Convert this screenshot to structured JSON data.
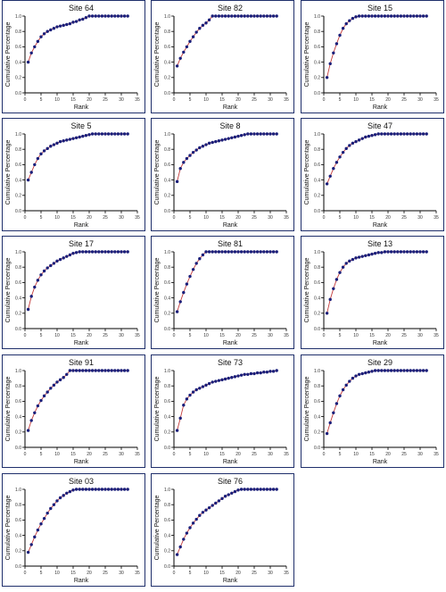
{
  "chart_data": [
    {
      "type": "line",
      "title": "Site 64",
      "xlabel": "Rank",
      "ylabel": "Cumulative Percentage",
      "xlim": [
        0,
        35
      ],
      "ylim": [
        0,
        1
      ],
      "x": [
        1,
        2,
        3,
        4,
        5,
        6,
        7,
        8,
        9,
        10,
        11,
        12,
        13,
        14,
        15,
        16,
        17,
        18,
        19,
        20,
        21,
        22,
        23,
        24,
        25,
        26,
        27,
        28,
        29,
        30,
        31,
        32
      ],
      "series": [
        {
          "values": [
            0.4,
            0.52,
            0.6,
            0.67,
            0.73,
            0.77,
            0.8,
            0.82,
            0.84,
            0.86,
            0.87,
            0.88,
            0.89,
            0.9,
            0.92,
            0.93,
            0.95,
            0.96,
            0.98,
            1,
            1,
            1,
            1,
            1,
            1,
            1,
            1,
            1,
            1,
            1,
            1,
            1
          ]
        }
      ]
    },
    {
      "type": "line",
      "title": "Site 82",
      "xlabel": "Rank",
      "ylabel": "Cumulative Percentage",
      "xlim": [
        0,
        35
      ],
      "ylim": [
        0,
        1
      ],
      "x": [
        1,
        2,
        3,
        4,
        5,
        6,
        7,
        8,
        9,
        10,
        11,
        12,
        13,
        14,
        15,
        16,
        17,
        18,
        19,
        20,
        21,
        22,
        23,
        24,
        25,
        26,
        27,
        28,
        29,
        30,
        31,
        32
      ],
      "series": [
        {
          "values": [
            0.35,
            0.45,
            0.53,
            0.6,
            0.67,
            0.73,
            0.79,
            0.84,
            0.88,
            0.91,
            0.95,
            1,
            1,
            1,
            1,
            1,
            1,
            1,
            1,
            1,
            1,
            1,
            1,
            1,
            1,
            1,
            1,
            1,
            1,
            1,
            1,
            1
          ]
        }
      ]
    },
    {
      "type": "line",
      "title": "Site 15",
      "xlabel": "Rank",
      "ylabel": "Cumulative Percentage",
      "xlim": [
        0,
        35
      ],
      "ylim": [
        0,
        1
      ],
      "x": [
        1,
        2,
        3,
        4,
        5,
        6,
        7,
        8,
        9,
        10,
        11,
        12,
        13,
        14,
        15,
        16,
        17,
        18,
        19,
        20,
        21,
        22,
        23,
        24,
        25,
        26,
        27,
        28,
        29,
        30,
        31,
        32
      ],
      "series": [
        {
          "values": [
            0.2,
            0.38,
            0.52,
            0.64,
            0.75,
            0.84,
            0.9,
            0.94,
            0.97,
            0.99,
            1,
            1,
            1,
            1,
            1,
            1,
            1,
            1,
            1,
            1,
            1,
            1,
            1,
            1,
            1,
            1,
            1,
            1,
            1,
            1,
            1,
            1
          ]
        }
      ]
    },
    {
      "type": "line",
      "title": "Site 5",
      "xlabel": "Rank",
      "ylabel": "Cumulative Percentage",
      "xlim": [
        0,
        35
      ],
      "ylim": [
        0,
        1
      ],
      "x": [
        1,
        2,
        3,
        4,
        5,
        6,
        7,
        8,
        9,
        10,
        11,
        12,
        13,
        14,
        15,
        16,
        17,
        18,
        19,
        20,
        21,
        22,
        23,
        24,
        25,
        26,
        27,
        28,
        29,
        30,
        31,
        32
      ],
      "series": [
        {
          "values": [
            0.4,
            0.5,
            0.6,
            0.68,
            0.74,
            0.78,
            0.81,
            0.84,
            0.86,
            0.88,
            0.9,
            0.91,
            0.92,
            0.93,
            0.94,
            0.95,
            0.96,
            0.97,
            0.98,
            0.99,
            1,
            1,
            1,
            1,
            1,
            1,
            1,
            1,
            1,
            1,
            1,
            1
          ]
        }
      ]
    },
    {
      "type": "line",
      "title": "Site 8",
      "xlabel": "Rank",
      "ylabel": "Cumulative Percentage",
      "xlim": [
        0,
        35
      ],
      "ylim": [
        0,
        1
      ],
      "x": [
        1,
        2,
        3,
        4,
        5,
        6,
        7,
        8,
        9,
        10,
        11,
        12,
        13,
        14,
        15,
        16,
        17,
        18,
        19,
        20,
        21,
        22,
        23,
        24,
        25,
        26,
        27,
        28,
        29,
        30,
        31,
        32
      ],
      "series": [
        {
          "values": [
            0.38,
            0.55,
            0.63,
            0.68,
            0.72,
            0.76,
            0.79,
            0.82,
            0.84,
            0.86,
            0.88,
            0.89,
            0.9,
            0.91,
            0.92,
            0.93,
            0.94,
            0.95,
            0.96,
            0.97,
            0.98,
            0.99,
            1,
            1,
            1,
            1,
            1,
            1,
            1,
            1,
            1,
            1
          ]
        }
      ]
    },
    {
      "type": "line",
      "title": "Site 47",
      "xlabel": "Rank",
      "ylabel": "Cumulative Percentage",
      "xlim": [
        0,
        35
      ],
      "ylim": [
        0,
        1
      ],
      "x": [
        1,
        2,
        3,
        4,
        5,
        6,
        7,
        8,
        9,
        10,
        11,
        12,
        13,
        14,
        15,
        16,
        17,
        18,
        19,
        20,
        21,
        22,
        23,
        24,
        25,
        26,
        27,
        28,
        29,
        30,
        31,
        32
      ],
      "series": [
        {
          "values": [
            0.35,
            0.45,
            0.55,
            0.63,
            0.7,
            0.76,
            0.81,
            0.85,
            0.88,
            0.9,
            0.92,
            0.94,
            0.96,
            0.97,
            0.98,
            0.99,
            1,
            1,
            1,
            1,
            1,
            1,
            1,
            1,
            1,
            1,
            1,
            1,
            1,
            1,
            1,
            1
          ]
        }
      ]
    },
    {
      "type": "line",
      "title": "Site 17",
      "xlabel": "Rank",
      "ylabel": "Cumulative Percentage",
      "xlim": [
        0,
        35
      ],
      "ylim": [
        0,
        1
      ],
      "x": [
        1,
        2,
        3,
        4,
        5,
        6,
        7,
        8,
        9,
        10,
        11,
        12,
        13,
        14,
        15,
        16,
        17,
        18,
        19,
        20,
        21,
        22,
        23,
        24,
        25,
        26,
        27,
        28,
        29,
        30,
        31,
        32
      ],
      "series": [
        {
          "values": [
            0.25,
            0.42,
            0.54,
            0.63,
            0.7,
            0.75,
            0.79,
            0.82,
            0.85,
            0.88,
            0.9,
            0.92,
            0.94,
            0.96,
            0.98,
            0.99,
            1,
            1,
            1,
            1,
            1,
            1,
            1,
            1,
            1,
            1,
            1,
            1,
            1,
            1,
            1,
            1
          ]
        }
      ]
    },
    {
      "type": "line",
      "title": "Site 81",
      "xlabel": "Rank",
      "ylabel": "Cumulative Percentage",
      "xlim": [
        0,
        35
      ],
      "ylim": [
        0,
        1
      ],
      "x": [
        1,
        2,
        3,
        4,
        5,
        6,
        7,
        8,
        9,
        10,
        11,
        12,
        13,
        14,
        15,
        16,
        17,
        18,
        19,
        20,
        21,
        22,
        23,
        24,
        25,
        26,
        27,
        28,
        29,
        30,
        31,
        32
      ],
      "series": [
        {
          "values": [
            0.22,
            0.35,
            0.47,
            0.58,
            0.68,
            0.77,
            0.85,
            0.91,
            0.96,
            1,
            1,
            1,
            1,
            1,
            1,
            1,
            1,
            1,
            1,
            1,
            1,
            1,
            1,
            1,
            1,
            1,
            1,
            1,
            1,
            1,
            1,
            1
          ]
        }
      ]
    },
    {
      "type": "line",
      "title": "Site 13",
      "xlabel": "Rank",
      "ylabel": "Cumulative Percentage",
      "xlim": [
        0,
        35
      ],
      "ylim": [
        0,
        1
      ],
      "x": [
        1,
        2,
        3,
        4,
        5,
        6,
        7,
        8,
        9,
        10,
        11,
        12,
        13,
        14,
        15,
        16,
        17,
        18,
        19,
        20,
        21,
        22,
        23,
        24,
        25,
        26,
        27,
        28,
        29,
        30,
        31,
        32
      ],
      "series": [
        {
          "values": [
            0.2,
            0.38,
            0.52,
            0.64,
            0.73,
            0.8,
            0.85,
            0.88,
            0.9,
            0.92,
            0.93,
            0.94,
            0.95,
            0.96,
            0.97,
            0.98,
            0.99,
            0.99,
            1,
            1,
            1,
            1,
            1,
            1,
            1,
            1,
            1,
            1,
            1,
            1,
            1,
            1
          ]
        }
      ]
    },
    {
      "type": "line",
      "title": "Site 91",
      "xlabel": "Rank",
      "ylabel": "Cumulative Percentage",
      "xlim": [
        0,
        35
      ],
      "ylim": [
        0,
        1
      ],
      "x": [
        1,
        2,
        3,
        4,
        5,
        6,
        7,
        8,
        9,
        10,
        11,
        12,
        13,
        14,
        15,
        16,
        17,
        18,
        19,
        20,
        21,
        22,
        23,
        24,
        25,
        26,
        27,
        28,
        29,
        30,
        31,
        32
      ],
      "series": [
        {
          "values": [
            0.22,
            0.35,
            0.45,
            0.54,
            0.61,
            0.67,
            0.72,
            0.77,
            0.81,
            0.85,
            0.88,
            0.91,
            0.95,
            1,
            1,
            1,
            1,
            1,
            1,
            1,
            1,
            1,
            1,
            1,
            1,
            1,
            1,
            1,
            1,
            1,
            1,
            1
          ]
        }
      ]
    },
    {
      "type": "line",
      "title": "Site 73",
      "xlabel": "Rank",
      "ylabel": "Cumulative Percentage",
      "xlim": [
        0,
        35
      ],
      "ylim": [
        0,
        1
      ],
      "x": [
        1,
        2,
        3,
        4,
        5,
        6,
        7,
        8,
        9,
        10,
        11,
        12,
        13,
        14,
        15,
        16,
        17,
        18,
        19,
        20,
        21,
        22,
        23,
        24,
        25,
        26,
        27,
        28,
        29,
        30,
        31,
        32
      ],
      "series": [
        {
          "values": [
            0.22,
            0.38,
            0.55,
            0.63,
            0.68,
            0.72,
            0.75,
            0.77,
            0.79,
            0.81,
            0.83,
            0.85,
            0.86,
            0.87,
            0.88,
            0.89,
            0.9,
            0.91,
            0.92,
            0.93,
            0.94,
            0.95,
            0.95,
            0.96,
            0.96,
            0.97,
            0.97,
            0.98,
            0.98,
            0.99,
            0.99,
            1
          ]
        }
      ]
    },
    {
      "type": "line",
      "title": "Site 29",
      "xlabel": "Rank",
      "ylabel": "Cumulative Percentage",
      "xlim": [
        0,
        35
      ],
      "ylim": [
        0,
        1
      ],
      "x": [
        1,
        2,
        3,
        4,
        5,
        6,
        7,
        8,
        9,
        10,
        11,
        12,
        13,
        14,
        15,
        16,
        17,
        18,
        19,
        20,
        21,
        22,
        23,
        24,
        25,
        26,
        27,
        28,
        29,
        30,
        31,
        32
      ],
      "series": [
        {
          "values": [
            0.18,
            0.32,
            0.45,
            0.57,
            0.67,
            0.75,
            0.81,
            0.86,
            0.9,
            0.93,
            0.95,
            0.96,
            0.97,
            0.98,
            0.99,
            1,
            1,
            1,
            1,
            1,
            1,
            1,
            1,
            1,
            1,
            1,
            1,
            1,
            1,
            1,
            1,
            1
          ]
        }
      ]
    },
    {
      "type": "line",
      "title": "Site 03",
      "xlabel": "Rank",
      "ylabel": "Cumulative Percentage",
      "xlim": [
        0,
        35
      ],
      "ylim": [
        0,
        1
      ],
      "x": [
        1,
        2,
        3,
        4,
        5,
        6,
        7,
        8,
        9,
        10,
        11,
        12,
        13,
        14,
        15,
        16,
        17,
        18,
        19,
        20,
        21,
        22,
        23,
        24,
        25,
        26,
        27,
        28,
        29,
        30,
        31,
        32
      ],
      "series": [
        {
          "values": [
            0.18,
            0.28,
            0.38,
            0.47,
            0.55,
            0.62,
            0.69,
            0.75,
            0.8,
            0.85,
            0.89,
            0.92,
            0.95,
            0.97,
            0.99,
            1,
            1,
            1,
            1,
            1,
            1,
            1,
            1,
            1,
            1,
            1,
            1,
            1,
            1,
            1,
            1,
            1
          ]
        }
      ]
    },
    {
      "type": "line",
      "title": "Site 76",
      "xlabel": "Rank",
      "ylabel": "Cumulative Percentage",
      "xlim": [
        0,
        35
      ],
      "ylim": [
        0,
        1
      ],
      "x": [
        1,
        2,
        3,
        4,
        5,
        6,
        7,
        8,
        9,
        10,
        11,
        12,
        13,
        14,
        15,
        16,
        17,
        18,
        19,
        20,
        21,
        22,
        23,
        24,
        25,
        26,
        27,
        28,
        29,
        30,
        31,
        32
      ],
      "series": [
        {
          "values": [
            0.15,
            0.25,
            0.35,
            0.43,
            0.5,
            0.56,
            0.61,
            0.66,
            0.7,
            0.73,
            0.76,
            0.79,
            0.82,
            0.85,
            0.88,
            0.91,
            0.93,
            0.95,
            0.97,
            0.99,
            1,
            1,
            1,
            1,
            1,
            1,
            1,
            1,
            1,
            1,
            1,
            1
          ]
        }
      ]
    }
  ]
}
